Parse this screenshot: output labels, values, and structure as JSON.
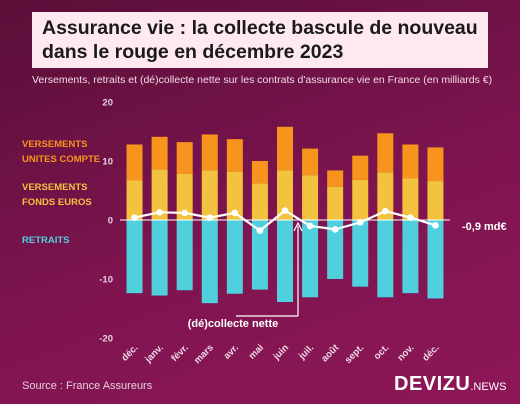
{
  "title": {
    "line1": "Assurance vie : la collecte bascule de nouveau",
    "line2": "dans le rouge en décembre 2023"
  },
  "subtitle": "Versements, retraits et (dé)collecte nette sur les contrats d'assurance vie en France (en milliards €)",
  "legend": {
    "uc_line1": "VERSEMENTS",
    "uc_line2": "UNITES COMPTE",
    "fe_line1": "VERSEMENTS",
    "fe_line2": "FONDS EUROS",
    "retraits": "RETRAITS",
    "net": "(dé)collecte nette"
  },
  "final_label": "-0,9 md€",
  "source": "Source : France Assureurs",
  "brand": {
    "name": "DEVIZU",
    "suffix": ".NEWS"
  },
  "colors": {
    "unites_compte": "#f7941d",
    "fonds_euros": "#f3c23f",
    "retraits": "#4fd0dc",
    "net_line": "#ffffff"
  },
  "chart_data": {
    "type": "bar",
    "stacked": true,
    "categories": [
      "déc.",
      "janv.",
      "févr.",
      "mars",
      "avr.",
      "mai",
      "juin",
      "juil.",
      "août",
      "sept.",
      "oct.",
      "nov.",
      "déc."
    ],
    "ylim": [
      -20,
      20
    ],
    "yticks": [
      -20,
      -10,
      0,
      10,
      20
    ],
    "grid": false,
    "series": [
      {
        "name": "VERSEMENTS FONDS EUROS",
        "values": [
          6.7,
          8.6,
          7.8,
          8.4,
          8.2,
          6.2,
          8.4,
          7.6,
          5.6,
          6.8,
          8.1,
          7.1,
          6.6
        ]
      },
      {
        "name": "VERSEMENTS UNITES COMPTE",
        "values": [
          6.1,
          5.5,
          5.4,
          6.1,
          5.5,
          3.8,
          7.4,
          4.5,
          2.8,
          4.1,
          6.6,
          5.7,
          5.7
        ]
      },
      {
        "name": "RETRAITS",
        "values": [
          -12.4,
          -12.8,
          -11.9,
          -14.1,
          -12.5,
          -11.8,
          -13.9,
          -13.1,
          -10.0,
          -11.3,
          -13.1,
          -12.4,
          -13.3
        ]
      },
      {
        "name": "(dé)collecte nette",
        "values": [
          0.4,
          1.3,
          1.2,
          0.4,
          1.2,
          -1.8,
          1.6,
          -1.0,
          -1.6,
          -0.4,
          1.5,
          0.4,
          -0.9
        ]
      }
    ]
  }
}
